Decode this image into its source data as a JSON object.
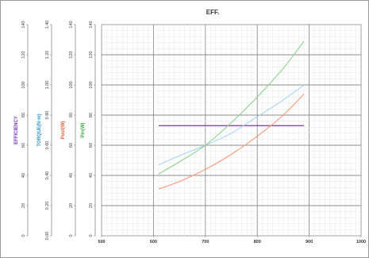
{
  "chart_data": {
    "type": "line",
    "title": "EFF.",
    "grid": true,
    "x": {
      "range": [
        500,
        1000
      ],
      "ticks": [
        "500",
        "600",
        "700",
        "800",
        "900",
        "1000"
      ]
    },
    "axes": [
      {
        "key": "efficiency",
        "label": "EFFICIENCY",
        "color": "#7b2fbe",
        "range": [
          0,
          140
        ],
        "ticks": [
          "0",
          "20",
          "40",
          "60",
          "80",
          "100",
          "120",
          "140"
        ]
      },
      {
        "key": "torque",
        "label": "TORQUE(N-m)",
        "color": "#3399cc",
        "range": [
          0,
          1.4
        ],
        "ticks": [
          "0.00",
          "0.20",
          "0.40",
          "0.60",
          "0.80",
          "1.00",
          "1.20",
          "1.40"
        ]
      },
      {
        "key": "pout",
        "label": "Pout(W)",
        "color": "#e8603a",
        "range": [
          0,
          140
        ],
        "ticks": [
          "0",
          "20",
          "40",
          "60",
          "80",
          "100",
          "120",
          "140"
        ]
      },
      {
        "key": "pin",
        "label": "Pin(W)",
        "color": "#44aa44",
        "range": [
          0,
          140
        ],
        "ticks": [
          "0",
          "20",
          "40",
          "60",
          "80",
          "100",
          "120",
          "140"
        ]
      }
    ],
    "series": [
      {
        "axis": "efficiency",
        "color": "#8a3fd1",
        "x": [
          610,
          890
        ],
        "y": [
          73,
          73
        ]
      },
      {
        "axis": "torque",
        "color": "#a8d4f2",
        "x": [
          610,
          650,
          700,
          750,
          800,
          850,
          890
        ],
        "y": [
          0.47,
          0.53,
          0.6,
          0.68,
          0.79,
          0.9,
          1.0
        ]
      },
      {
        "axis": "pin",
        "color": "#8fd18f",
        "x": [
          610,
          650,
          700,
          750,
          800,
          850,
          890
        ],
        "y": [
          41,
          49,
          60,
          75,
          92,
          111,
          129
        ]
      },
      {
        "axis": "pout",
        "color": "#f79a78",
        "x": [
          610,
          650,
          700,
          750,
          800,
          850,
          890
        ],
        "y": [
          31,
          36,
          44,
          54,
          66,
          80,
          94
        ]
      }
    ]
  }
}
